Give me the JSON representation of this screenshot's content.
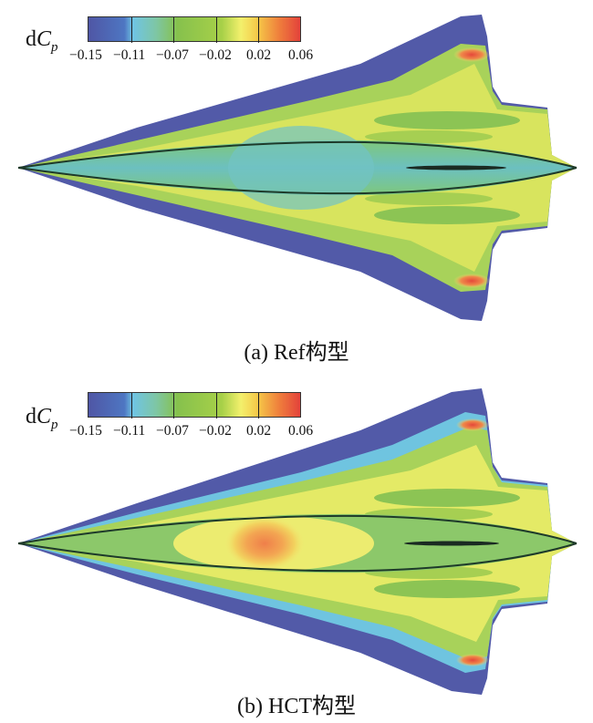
{
  "colorbar": {
    "symbol": "dC",
    "symbol_base": "d",
    "symbol_var": "C",
    "symbol_sub": "p",
    "ticks": [
      "−0.15",
      "−0.11",
      "−0.07",
      "−0.02",
      "0.02",
      "0.06"
    ],
    "colors": [
      "#525aa8",
      "#4a7ec8",
      "#72c6e0",
      "#7fc9a8",
      "#8cc450",
      "#b8d84a",
      "#e9ec6a",
      "#f5c644",
      "#ee7a3c",
      "#e5483a"
    ]
  },
  "panels": [
    {
      "id": "a",
      "caption": "(a) Ref构型"
    },
    {
      "id": "b",
      "caption": "(b) HCT构型"
    }
  ]
}
